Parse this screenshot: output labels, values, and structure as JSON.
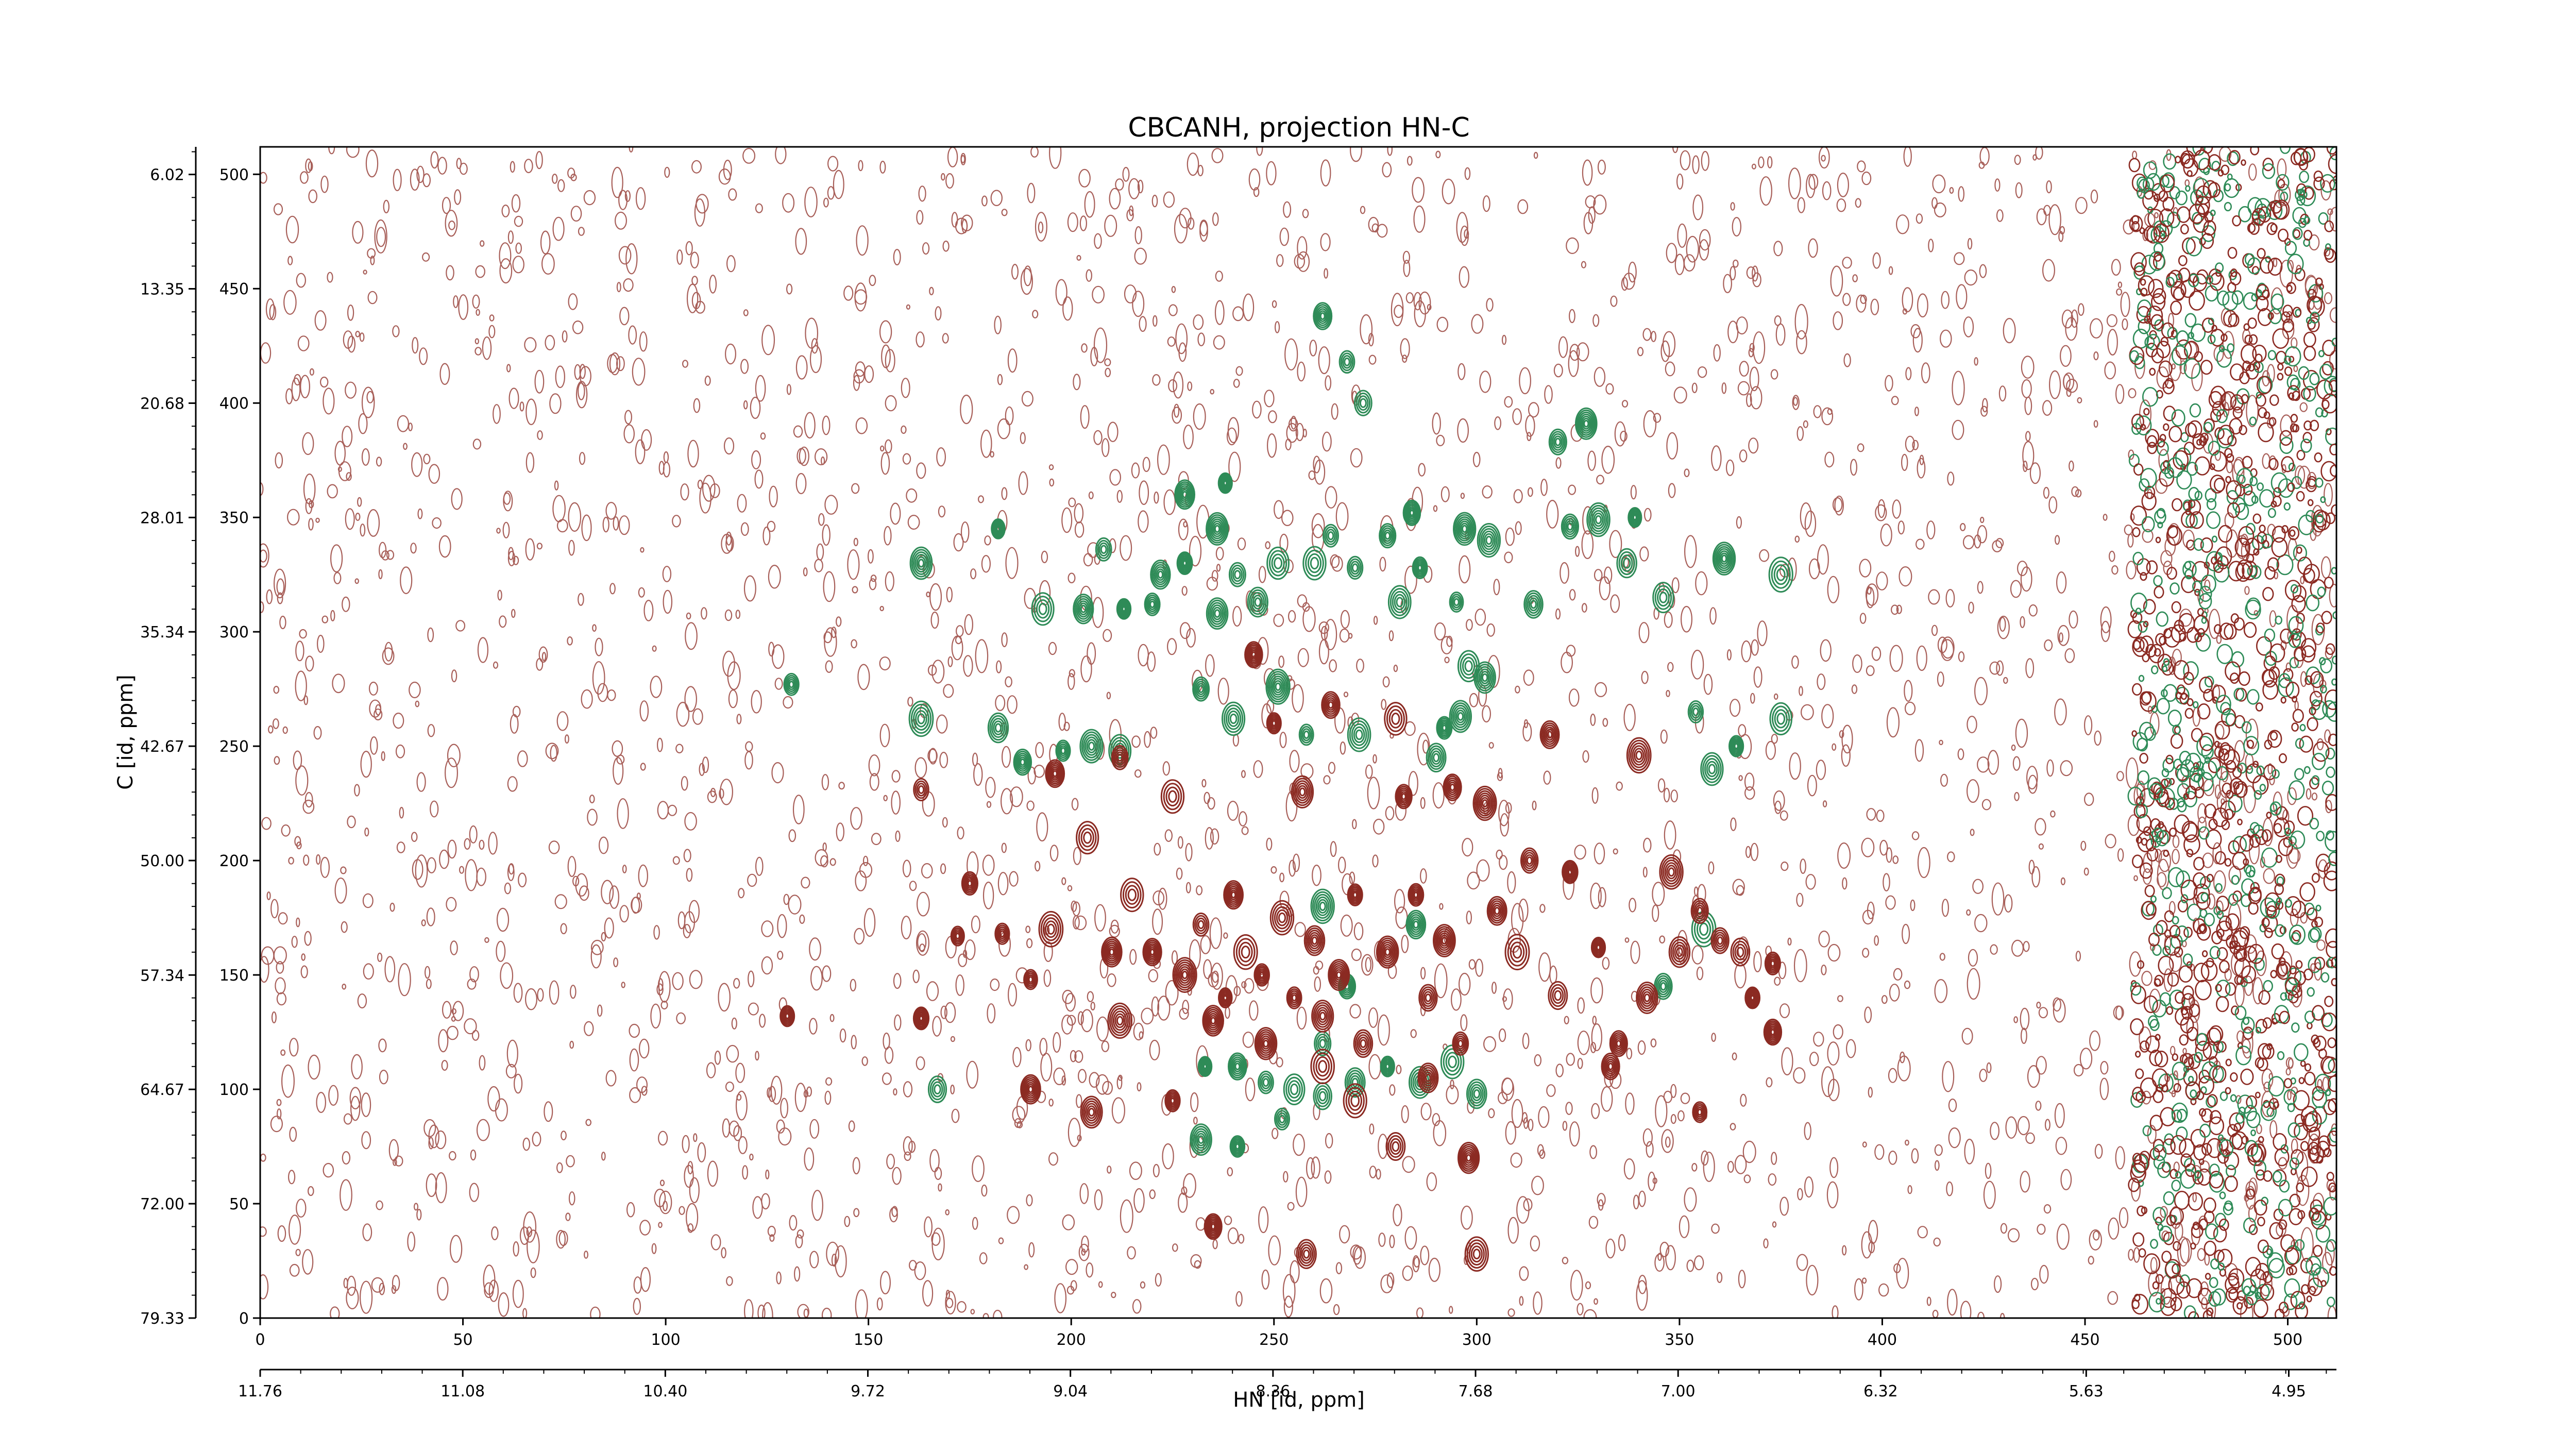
{
  "chart_data": {
    "type": "contour",
    "title": "CBCANH, projection HN-C",
    "xlabel": "HN [id, ppm]",
    "ylabel": "C [id, ppm]",
    "x_index_ticks": [
      "0",
      "50",
      "100",
      "150",
      "200",
      "250",
      "300",
      "350",
      "400",
      "450",
      "500"
    ],
    "x_ppm_ticks": [
      "11.76",
      "11.08",
      "10.40",
      "9.72",
      "9.04",
      "8.36",
      "7.68",
      "7.00",
      "6.32",
      "5.63",
      "4.95"
    ],
    "y_index_ticks": [
      "0",
      "50",
      "100",
      "150",
      "200",
      "250",
      "300",
      "350",
      "400",
      "450",
      "500"
    ],
    "y_ppm_ticks": [
      "79.33",
      "72.00",
      "64.67",
      "57.34",
      "50.00",
      "42.67",
      "35.34",
      "28.01",
      "20.68",
      "13.35",
      "6.02"
    ],
    "x_index_range": [
      0,
      512
    ],
    "y_index_range": [
      0,
      512
    ],
    "x_ppm_range": [
      11.76,
      4.79
    ],
    "y_ppm_range": [
      79.33,
      4.25
    ],
    "colors": {
      "positive": "#8b2a22",
      "negative": "#2e8b57"
    },
    "series": [
      {
        "sign": "negative",
        "peaks": [
          {
            "x": 131,
            "y": 277
          },
          {
            "x": 163,
            "y": 262
          },
          {
            "x": 163,
            "y": 330
          },
          {
            "x": 182,
            "y": 258
          },
          {
            "x": 182,
            "y": 345
          },
          {
            "x": 188,
            "y": 243
          },
          {
            "x": 193,
            "y": 310
          },
          {
            "x": 198,
            "y": 248
          },
          {
            "x": 203,
            "y": 310
          },
          {
            "x": 205,
            "y": 250
          },
          {
            "x": 208,
            "y": 336
          },
          {
            "x": 212,
            "y": 248
          },
          {
            "x": 213,
            "y": 310
          },
          {
            "x": 220,
            "y": 312
          },
          {
            "x": 222,
            "y": 325
          },
          {
            "x": 228,
            "y": 330
          },
          {
            "x": 228,
            "y": 360
          },
          {
            "x": 232,
            "y": 275
          },
          {
            "x": 236,
            "y": 345
          },
          {
            "x": 236,
            "y": 308
          },
          {
            "x": 240,
            "y": 262
          },
          {
            "x": 241,
            "y": 325
          },
          {
            "x": 246,
            "y": 313
          },
          {
            "x": 251,
            "y": 276
          },
          {
            "x": 251,
            "y": 330
          },
          {
            "x": 258,
            "y": 255
          },
          {
            "x": 260,
            "y": 330
          },
          {
            "x": 264,
            "y": 342
          },
          {
            "x": 270,
            "y": 328
          },
          {
            "x": 271,
            "y": 255
          },
          {
            "x": 272,
            "y": 400
          },
          {
            "x": 278,
            "y": 342
          },
          {
            "x": 281,
            "y": 313
          },
          {
            "x": 284,
            "y": 352
          },
          {
            "x": 286,
            "y": 328
          },
          {
            "x": 290,
            "y": 245
          },
          {
            "x": 292,
            "y": 258
          },
          {
            "x": 295,
            "y": 313
          },
          {
            "x": 296,
            "y": 263
          },
          {
            "x": 297,
            "y": 345
          },
          {
            "x": 298,
            "y": 285
          },
          {
            "x": 302,
            "y": 280
          },
          {
            "x": 303,
            "y": 340
          },
          {
            "x": 314,
            "y": 312
          },
          {
            "x": 320,
            "y": 383
          },
          {
            "x": 323,
            "y": 346
          },
          {
            "x": 330,
            "y": 349
          },
          {
            "x": 337,
            "y": 330
          },
          {
            "x": 339,
            "y": 350
          },
          {
            "x": 346,
            "y": 315
          },
          {
            "x": 354,
            "y": 265
          },
          {
            "x": 358,
            "y": 240
          },
          {
            "x": 361,
            "y": 332
          },
          {
            "x": 364,
            "y": 250
          },
          {
            "x": 375,
            "y": 325
          },
          {
            "x": 375,
            "y": 262
          },
          {
            "x": 327,
            "y": 391
          },
          {
            "x": 238,
            "y": 365
          },
          {
            "x": 268,
            "y": 418
          },
          {
            "x": 262,
            "y": 438
          },
          {
            "x": 233,
            "y": 110
          },
          {
            "x": 241,
            "y": 110
          },
          {
            "x": 248,
            "y": 103
          },
          {
            "x": 255,
            "y": 100
          },
          {
            "x": 262,
            "y": 120
          },
          {
            "x": 270,
            "y": 103
          },
          {
            "x": 278,
            "y": 110
          },
          {
            "x": 286,
            "y": 103
          },
          {
            "x": 294,
            "y": 112
          },
          {
            "x": 300,
            "y": 98
          },
          {
            "x": 232,
            "y": 78
          },
          {
            "x": 241,
            "y": 75
          },
          {
            "x": 252,
            "y": 87
          },
          {
            "x": 262,
            "y": 97
          },
          {
            "x": 167,
            "y": 100
          },
          {
            "x": 262,
            "y": 180
          },
          {
            "x": 268,
            "y": 145
          },
          {
            "x": 285,
            "y": 172
          },
          {
            "x": 346,
            "y": 145
          },
          {
            "x": 356,
            "y": 170
          }
        ]
      },
      {
        "sign": "positive",
        "peaks": [
          {
            "x": 130,
            "y": 132
          },
          {
            "x": 163,
            "y": 231
          },
          {
            "x": 163,
            "y": 131
          },
          {
            "x": 172,
            "y": 167
          },
          {
            "x": 175,
            "y": 190
          },
          {
            "x": 183,
            "y": 168
          },
          {
            "x": 190,
            "y": 148
          },
          {
            "x": 195,
            "y": 170
          },
          {
            "x": 196,
            "y": 238
          },
          {
            "x": 204,
            "y": 210
          },
          {
            "x": 210,
            "y": 160
          },
          {
            "x": 212,
            "y": 245
          },
          {
            "x": 212,
            "y": 130
          },
          {
            "x": 215,
            "y": 185
          },
          {
            "x": 220,
            "y": 160
          },
          {
            "x": 225,
            "y": 228
          },
          {
            "x": 228,
            "y": 150
          },
          {
            "x": 232,
            "y": 172
          },
          {
            "x": 235,
            "y": 130
          },
          {
            "x": 238,
            "y": 140
          },
          {
            "x": 240,
            "y": 185
          },
          {
            "x": 243,
            "y": 160
          },
          {
            "x": 247,
            "y": 150
          },
          {
            "x": 248,
            "y": 120
          },
          {
            "x": 252,
            "y": 175
          },
          {
            "x": 255,
            "y": 140
          },
          {
            "x": 257,
            "y": 230
          },
          {
            "x": 260,
            "y": 165
          },
          {
            "x": 262,
            "y": 132
          },
          {
            "x": 264,
            "y": 268
          },
          {
            "x": 266,
            "y": 150
          },
          {
            "x": 270,
            "y": 185
          },
          {
            "x": 272,
            "y": 120
          },
          {
            "x": 278,
            "y": 160
          },
          {
            "x": 282,
            "y": 228
          },
          {
            "x": 285,
            "y": 185
          },
          {
            "x": 288,
            "y": 140
          },
          {
            "x": 292,
            "y": 165
          },
          {
            "x": 294,
            "y": 232
          },
          {
            "x": 296,
            "y": 120
          },
          {
            "x": 302,
            "y": 225
          },
          {
            "x": 305,
            "y": 178
          },
          {
            "x": 310,
            "y": 160
          },
          {
            "x": 313,
            "y": 200
          },
          {
            "x": 320,
            "y": 141
          },
          {
            "x": 323,
            "y": 195
          },
          {
            "x": 330,
            "y": 162
          },
          {
            "x": 335,
            "y": 120
          },
          {
            "x": 342,
            "y": 140
          },
          {
            "x": 350,
            "y": 160
          },
          {
            "x": 355,
            "y": 178
          },
          {
            "x": 360,
            "y": 165
          },
          {
            "x": 365,
            "y": 160
          },
          {
            "x": 368,
            "y": 140
          },
          {
            "x": 373,
            "y": 155
          },
          {
            "x": 340,
            "y": 246
          },
          {
            "x": 348,
            "y": 195
          },
          {
            "x": 318,
            "y": 255
          },
          {
            "x": 280,
            "y": 262
          },
          {
            "x": 250,
            "y": 260
          },
          {
            "x": 225,
            "y": 95
          },
          {
            "x": 270,
            "y": 95
          },
          {
            "x": 280,
            "y": 75
          },
          {
            "x": 262,
            "y": 110
          },
          {
            "x": 288,
            "y": 105
          },
          {
            "x": 298,
            "y": 70
          },
          {
            "x": 258,
            "y": 28
          },
          {
            "x": 235,
            "y": 40
          },
          {
            "x": 300,
            "y": 28
          },
          {
            "x": 205,
            "y": 90
          },
          {
            "x": 190,
            "y": 100
          },
          {
            "x": 333,
            "y": 110
          },
          {
            "x": 355,
            "y": 90
          },
          {
            "x": 373,
            "y": 125
          },
          {
            "x": 245,
            "y": 290
          }
        ]
      }
    ]
  }
}
